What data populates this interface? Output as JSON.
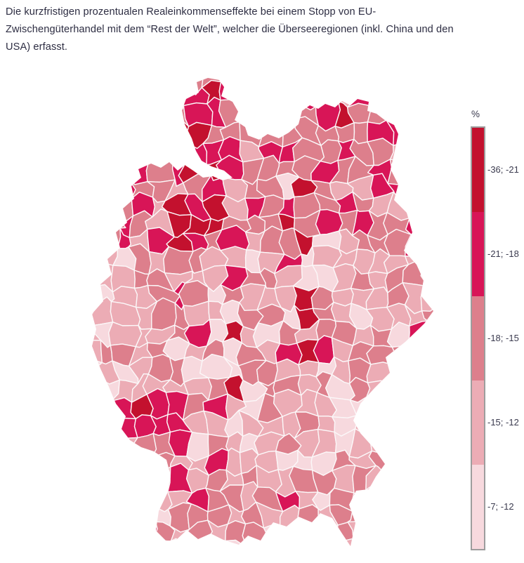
{
  "title_lines": [
    "Die kurzfristigen prozentualen Realeinkommenseffekte bei einem Stopp von EU-",
    "Zwischengüterhandel mit dem “Rest der Welt”, welcher die Überseeregionen (inkl. China und den",
    "USA) erfasst."
  ],
  "legend": {
    "unit_label": "%",
    "classes": [
      {
        "label": "-36; -21",
        "color": "#c3112e"
      },
      {
        "label": "-21; -18",
        "color": "#d81557"
      },
      {
        "label": "-18; -15",
        "color": "#dd7f8c"
      },
      {
        "label": "-15; -12",
        "color": "#ecacb5"
      },
      {
        "label": "-7; -12",
        "color": "#f7d9de"
      }
    ],
    "border_color": "#9d9d9d"
  },
  "chart_data": {
    "type": "heatmap",
    "subtype": "choropleth-map",
    "region": "Germany, district level (Landkreise)",
    "unit": "%",
    "legend_position": "right",
    "classes": [
      {
        "label": "-36; -21",
        "color": "#c3112e"
      },
      {
        "label": "-21; -18",
        "color": "#d81557"
      },
      {
        "label": "-18; -15",
        "color": "#dd7f8c"
      },
      {
        "label": "-15; -12",
        "color": "#ecacb5"
      },
      {
        "label": "-7; -12",
        "color": "#f7d9de"
      }
    ],
    "visible_pattern": [
      "Strongest real-income losses (-36 to -18 %) cluster in northwest Germany around the Bremen/Oldenburg/Hamburg belt",
      "Northern and northeastern districts mostly fall in the -21 to -15 % classes",
      "Central Germany is a mix of -18 to -7 % with isolated dark-red districts",
      "A dark cluster of -21 % and stronger appears in the Saarland and Ludwigshafen/Mannheim area in the southwest",
      "Southern Germany (Baden-Württemberg, Bavaria) is mostly in the lighter -15 to -7 % classes with few crimson outliers"
    ],
    "map_stroke_color": "#fbf7f8",
    "background": "#ffffff"
  }
}
